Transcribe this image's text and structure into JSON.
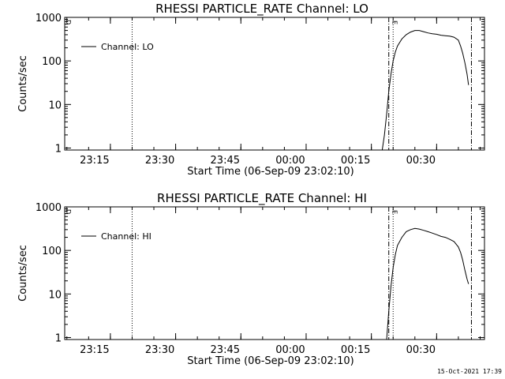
{
  "footer": {
    "timestamp": "15-Oct-2021 17:39"
  },
  "chart_data": [
    {
      "type": "line",
      "title": "RHESSI PARTICLE_RATE Channel: LO",
      "xlabel": "Start Time (06-Sep-09 23:02:10)",
      "ylabel": "Counts/sec",
      "y_scale": "log",
      "ylim": [
        0.9,
        1000
      ],
      "xlim": [
        "23:04:30",
        "00:41:00"
      ],
      "x_tick_labels": [
        "23:15",
        "23:30",
        "23:45",
        "00:00",
        "00:15",
        "00:30"
      ],
      "y_tick_labels": [
        "1",
        "10",
        "100",
        "1000"
      ],
      "legend": {
        "position": "top-left",
        "entries": [
          "Channel: LO"
        ]
      },
      "markers": [
        {
          "style": "dotted",
          "x": "23:20:00"
        },
        {
          "style": "dash-dot",
          "x": "00:19:00",
          "label": "E"
        },
        {
          "style": "dotted",
          "x": "00:20:00"
        },
        {
          "style": "dash-dot",
          "x": "00:38:00"
        }
      ],
      "left_marker_label": "D",
      "series": [
        {
          "name": "Channel: LO",
          "x": [
            "00:17:30",
            "00:18:00",
            "00:18:30",
            "00:19:00",
            "00:19:30",
            "00:20:00",
            "00:20:30",
            "00:21:00",
            "00:22:00",
            "00:23:00",
            "00:24:00",
            "00:25:00",
            "00:26:00",
            "00:27:00",
            "00:28:00",
            "00:29:00",
            "00:30:00",
            "00:31:00",
            "00:32:00",
            "00:33:00",
            "00:34:00",
            "00:35:00",
            "00:35:30",
            "00:36:00",
            "00:36:30",
            "00:37:00",
            "00:37:20"
          ],
          "y": [
            0.9,
            2,
            6,
            20,
            50,
            100,
            160,
            220,
            320,
            400,
            460,
            500,
            500,
            470,
            440,
            420,
            410,
            390,
            380,
            370,
            350,
            300,
            220,
            150,
            90,
            50,
            28
          ]
        }
      ]
    },
    {
      "type": "line",
      "title": "RHESSI PARTICLE_RATE Channel: HI",
      "xlabel": "Start Time (06-Sep-09 23:02:10)",
      "ylabel": "Counts/sec",
      "y_scale": "log",
      "ylim": [
        0.9,
        1000
      ],
      "xlim": [
        "23:04:30",
        "00:41:00"
      ],
      "x_tick_labels": [
        "23:15",
        "23:30",
        "23:45",
        "00:00",
        "00:15",
        "00:30"
      ],
      "y_tick_labels": [
        "1",
        "10",
        "100",
        "1000"
      ],
      "legend": {
        "position": "top-left",
        "entries": [
          "Channel: HI"
        ]
      },
      "markers": [
        {
          "style": "dotted",
          "x": "23:20:00"
        },
        {
          "style": "dash-dot",
          "x": "00:19:00",
          "label": "E"
        },
        {
          "style": "dotted",
          "x": "00:20:00"
        },
        {
          "style": "dash-dot",
          "x": "00:38:00"
        }
      ],
      "left_marker_label": "D",
      "series": [
        {
          "name": "Channel: HI",
          "x": [
            "00:18:30",
            "00:19:00",
            "00:19:30",
            "00:20:00",
            "00:20:30",
            "00:21:00",
            "00:22:00",
            "00:23:00",
            "00:24:00",
            "00:25:00",
            "00:26:00",
            "00:27:00",
            "00:28:00",
            "00:29:00",
            "00:30:00",
            "00:31:00",
            "00:32:00",
            "00:33:00",
            "00:34:00",
            "00:35:00",
            "00:35:30",
            "00:36:00",
            "00:36:30",
            "00:37:00",
            "00:37:20"
          ],
          "y": [
            0.9,
            4,
            15,
            40,
            80,
            130,
            200,
            270,
            300,
            320,
            310,
            290,
            270,
            250,
            230,
            210,
            200,
            180,
            160,
            120,
            90,
            60,
            35,
            22,
            17
          ]
        }
      ]
    }
  ]
}
